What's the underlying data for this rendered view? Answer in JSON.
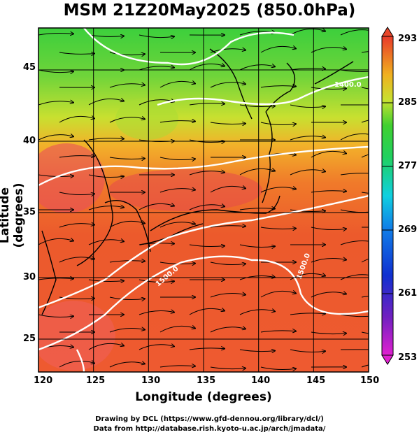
{
  "title": "MSM 21Z20May2025 (850.0hPa)",
  "xaxis": {
    "label": "Longitude (degrees)",
    "ticks": [
      "120",
      "125",
      "130",
      "135",
      "140",
      "145",
      "150"
    ]
  },
  "yaxis": {
    "label": "Latitude  (degrees)",
    "ticks": [
      "25",
      "30",
      "35",
      "40",
      "45"
    ]
  },
  "colorbar": {
    "ticks": [
      "293",
      "285",
      "277",
      "269",
      "261",
      "253"
    ],
    "range": [
      253,
      293
    ]
  },
  "contour_labels": [
    "1400.0",
    "1500.0",
    "1500.0"
  ],
  "credits": {
    "line1": "Drawing by DCL (https://www.gfd-dennou.org/library/dcl/)",
    "line2": "Data from http://database.rish.kyoto-u.ac.jp/arch/jmadata/"
  },
  "colors": {
    "warm": "#e8462a",
    "mid": "#f0a020",
    "cool": "#4cd04c",
    "contour": "#ffffff"
  }
}
